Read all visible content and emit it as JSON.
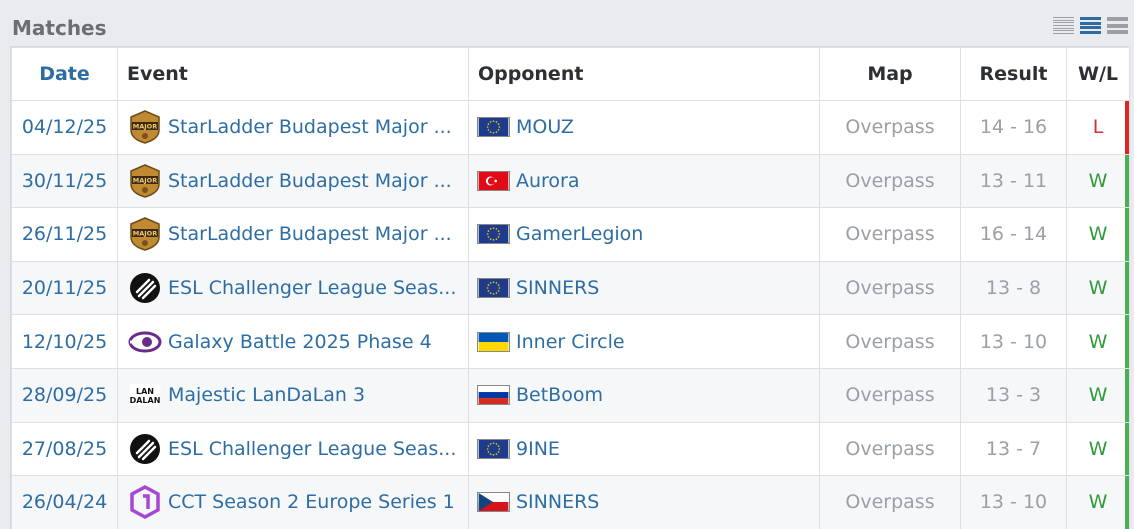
{
  "title": "Matches",
  "view_icons": [
    "dense-view-icon",
    "normal-view-icon",
    "loose-view-icon"
  ],
  "headers": {
    "date": "Date",
    "event": "Event",
    "opponent": "Opponent",
    "map": "Map",
    "result": "Result",
    "wl": "W/L"
  },
  "colors": {
    "link": "#2d6da3",
    "win": "#2e9a3a",
    "loss": "#d32f2f"
  },
  "rows": [
    {
      "date": "04/12/25",
      "event": "StarLadder Budapest Major ...",
      "event_logo": "major-logo",
      "opponent": "MOUZ",
      "flag": "eu",
      "map": "Overpass",
      "result": "14 - 16",
      "wl": "L"
    },
    {
      "date": "30/11/25",
      "event": "StarLadder Budapest Major ...",
      "event_logo": "major-logo",
      "opponent": "Aurora",
      "flag": "tr",
      "map": "Overpass",
      "result": "13 - 11",
      "wl": "W"
    },
    {
      "date": "26/11/25",
      "event": "StarLadder Budapest Major ...",
      "event_logo": "major-logo",
      "opponent": "GamerLegion",
      "flag": "eu",
      "map": "Overpass",
      "result": "16 - 14",
      "wl": "W"
    },
    {
      "date": "20/11/25",
      "event": "ESL Challenger League Seas...",
      "event_logo": "esl-logo",
      "opponent": "SINNERS",
      "flag": "eu",
      "map": "Overpass",
      "result": "13 - 8",
      "wl": "W"
    },
    {
      "date": "12/10/25",
      "event": "Galaxy Battle 2025 Phase 4",
      "event_logo": "galaxy-battle-logo",
      "opponent": "Inner Circle",
      "flag": "ua",
      "map": "Overpass",
      "result": "13 - 10",
      "wl": "W"
    },
    {
      "date": "28/09/25",
      "event": "Majestic LanDaLan 3",
      "event_logo": "landalan-logo",
      "opponent": "BetBoom",
      "flag": "ru",
      "map": "Overpass",
      "result": "13 - 3",
      "wl": "W"
    },
    {
      "date": "27/08/25",
      "event": "ESL Challenger League Seas...",
      "event_logo": "esl-logo",
      "opponent": "9INE",
      "flag": "eu",
      "map": "Overpass",
      "result": "13 - 7",
      "wl": "W"
    },
    {
      "date": "26/04/24",
      "event": "CCT Season 2 Europe Series 1",
      "event_logo": "cct-logo",
      "opponent": "SINNERS",
      "flag": "cz",
      "map": "Overpass",
      "result": "13 - 10",
      "wl": "W"
    }
  ]
}
